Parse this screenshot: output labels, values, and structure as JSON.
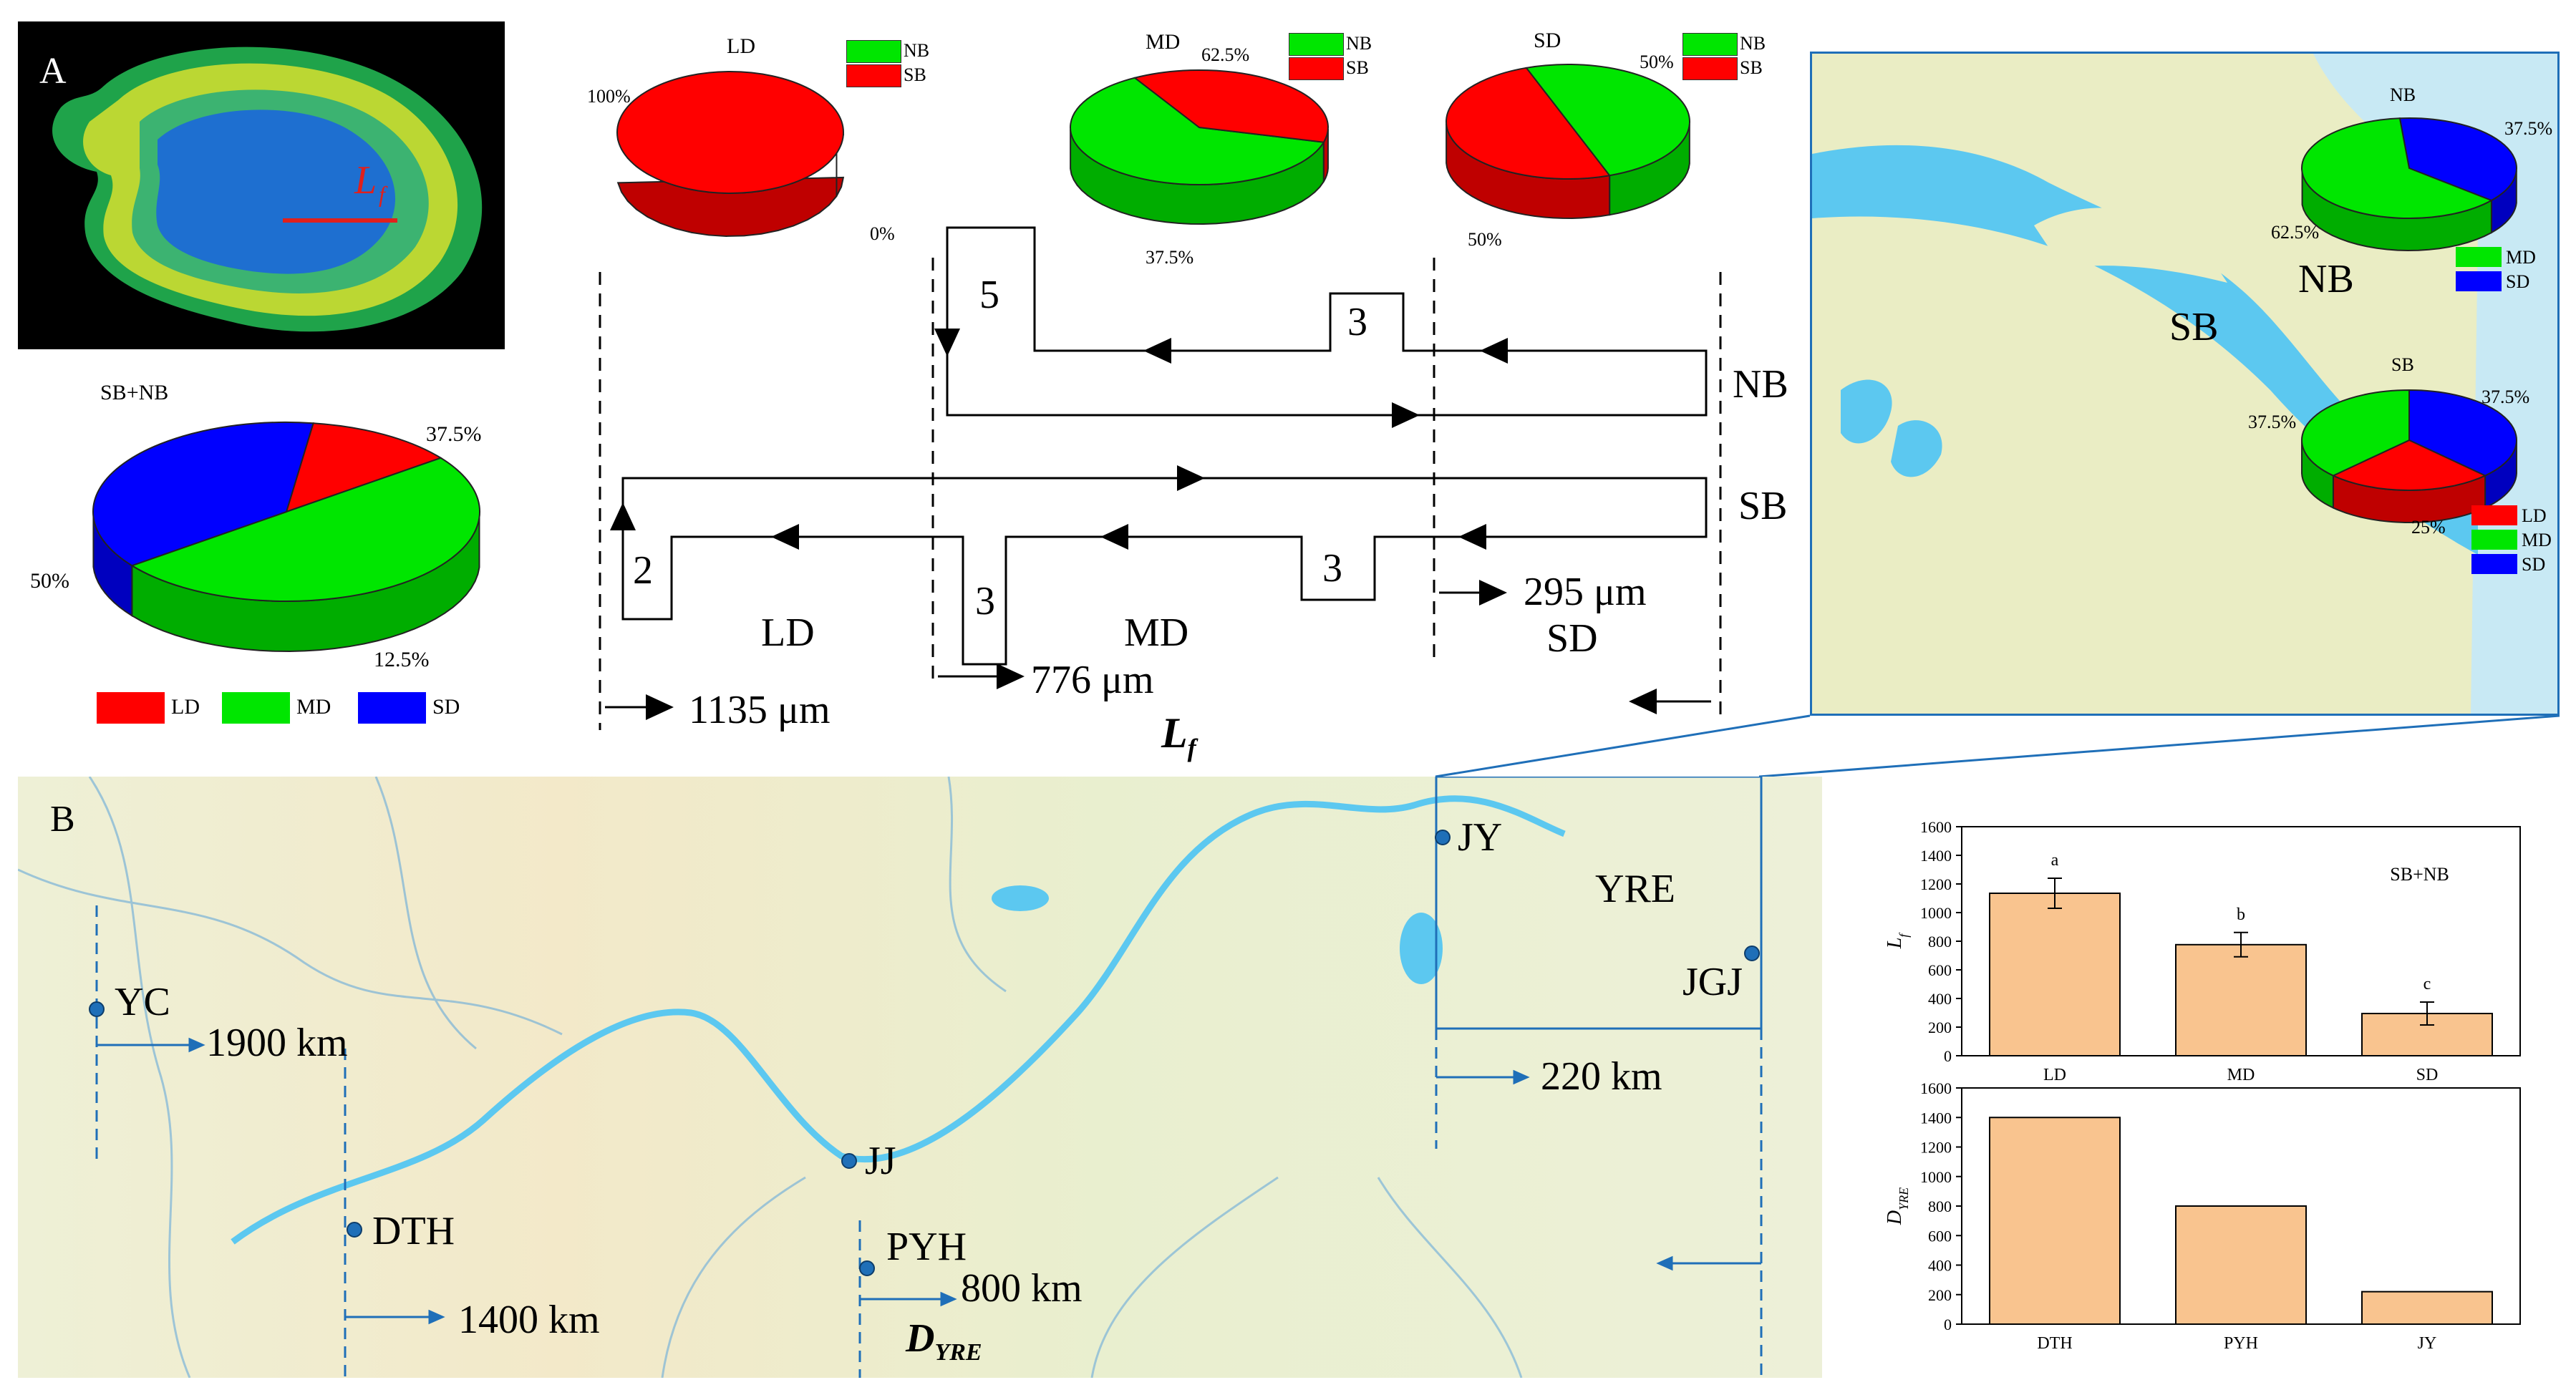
{
  "panel_a": {
    "letter": "A",
    "lf_label": "L",
    "lf_sub": "f",
    "total_pie": {
      "title": "SB+NB",
      "slices": [
        {
          "name": "LD",
          "value": 12.5,
          "label": "12.5%",
          "color": "#ff0000"
        },
        {
          "name": "MD",
          "value": 50,
          "label": "50%",
          "color": "#00e600"
        },
        {
          "name": "SD",
          "value": 37.5,
          "label": "37.5%",
          "color": "#0000ff"
        }
      ],
      "legend": [
        "LD",
        "MD",
        "SD"
      ]
    },
    "zone_pies": [
      {
        "title": "LD",
        "nb_label": "0%",
        "sb_label": "100%",
        "nb": 0,
        "sb": 100
      },
      {
        "title": "MD",
        "nb_label": "62.5%",
        "sb_label": "37.5%",
        "nb": 62.5,
        "sb": 37.5
      },
      {
        "title": "SD",
        "nb_label": "50%",
        "sb_label": "50%",
        "nb": 50,
        "sb": 50
      }
    ],
    "pie_legend": {
      "nb": "NB",
      "sb": "SB"
    },
    "flow": {
      "nb_label": "NB",
      "sb_label": "SB",
      "counts": {
        "nb_md": "5",
        "nb_sd": "3",
        "sb_ld": "2",
        "sb_md": "3",
        "sb_sd": "3"
      },
      "zones": {
        "ld": "LD",
        "md": "MD",
        "sd": "SD"
      },
      "distances": {
        "ld": "1135 μm",
        "md": "776 μm",
        "sd": "295 μm"
      },
      "axis_label": "L",
      "axis_sub": "f"
    }
  },
  "inset_map": {
    "labels": {
      "nb": "NB",
      "sb": "SB"
    },
    "nb_pie": {
      "title": "NB",
      "pct_md": "62.5%",
      "pct_sd": "37.5%",
      "md": 62.5,
      "sd": 37.5,
      "legend": [
        "MD",
        "SD"
      ]
    },
    "sb_pie": {
      "title": "SB",
      "pct_ld": "25%",
      "pct_md": "37.5%",
      "pct_sd": "37.5%",
      "ld": 25,
      "md": 37.5,
      "sd": 37.5,
      "legend": [
        "LD",
        "MD",
        "SD"
      ]
    }
  },
  "panel_b": {
    "letter": "B",
    "sites": [
      {
        "name": "YC",
        "distance": "1900 km"
      },
      {
        "name": "DTH",
        "distance": "1400 km"
      },
      {
        "name": "JJ",
        "distance": ""
      },
      {
        "name": "PYH",
        "distance": "800 km"
      },
      {
        "name": "JY",
        "distance": "220 km"
      },
      {
        "name": "JGJ",
        "distance": ""
      }
    ],
    "region": "YRE",
    "axis_label": "D",
    "axis_sub": "YRE"
  },
  "colors": {
    "ld": "#ff0000",
    "md": "#00e600",
    "sd": "#0000ff",
    "bar": "#f9c48f",
    "bar_edge": "#000000",
    "water": "#5cc8f0",
    "site": "#1f6fb8"
  },
  "chart_data": [
    {
      "type": "bar",
      "title": "SB+NB",
      "categories": [
        "LD",
        "MD",
        "SD"
      ],
      "values": [
        1135,
        776,
        295
      ],
      "errors": [
        105,
        85,
        80
      ],
      "significance": [
        "a",
        "b",
        "c"
      ],
      "ylabel": "L",
      "ylabel_sub": "f",
      "ylim": [
        0,
        1600
      ],
      "yticks": [
        "0",
        "200",
        "400",
        "600",
        "800",
        "1000",
        "1200",
        "1400",
        "1600"
      ]
    },
    {
      "type": "bar",
      "title": "",
      "categories": [
        "DTH",
        "PYH",
        "JY"
      ],
      "values": [
        1400,
        800,
        220
      ],
      "ylabel": "D",
      "ylabel_sub": "YRE",
      "ylim": [
        0,
        1600
      ],
      "yticks": [
        "0",
        "200",
        "400",
        "600",
        "800",
        "1000",
        "1200",
        "1400",
        "1600"
      ]
    }
  ]
}
